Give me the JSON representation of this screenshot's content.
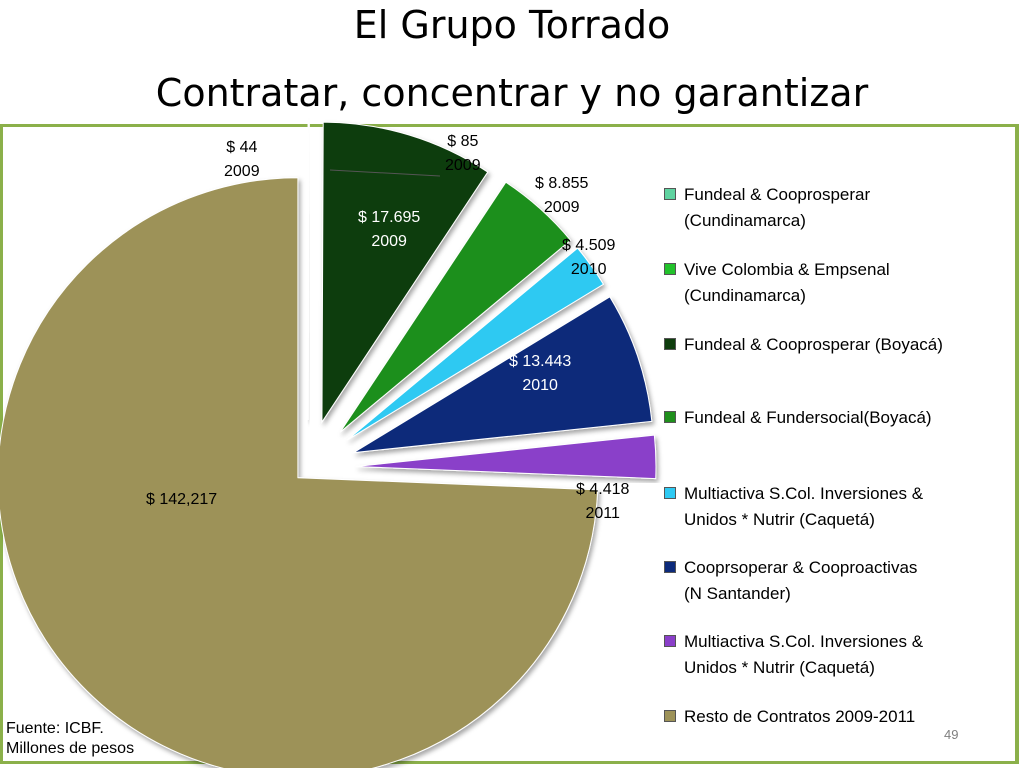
{
  "title_line1": "El Grupo Torrado",
  "title_line2": "Contratar, concentrar y no garantizar",
  "chart_data": {
    "type": "pie",
    "exploded": true,
    "slices": [
      {
        "name": "Fundeal & Cooprosperar (Cundinamarca)",
        "value": 44,
        "value_label": "$ 44",
        "year": "2009",
        "color": "#5fd3a0"
      },
      {
        "name": "Vive Colombia & Empsenal (Cundinamarca)",
        "value": 85,
        "value_label": "$ 85",
        "year": "2009",
        "color": "#22c22b"
      },
      {
        "name": "Fundeal & Cooprosperar (Boyacá)",
        "value": 17695,
        "value_label": "$ 17.695",
        "year": "2009",
        "color": "#0f3d0d"
      },
      {
        "name": "Fundeal & Fundersocial(Boyacá)",
        "value": 8855,
        "value_label": "$ 8.855",
        "year": "2009",
        "color": "#1f8f1c"
      },
      {
        "name": "Multiactiva S.Col. Inversiones & Unidos * Nutrir (Caquetá)",
        "value": 4509,
        "value_label": "$ 4.509",
        "year": "2010",
        "color": "#2ec9f2"
      },
      {
        "name": "Cooprsoperar & Cooproactivas (N Santander)",
        "value": 13443,
        "value_label": "$ 13.443",
        "year": "2010",
        "color": "#0c2a7a"
      },
      {
        "name": "Multiactiva S.Col. Inversiones & Unidos * Nutrir (Caquetá)",
        "value": 4418,
        "value_label": "$ 4.418",
        "year": "2011",
        "color": "#8a3fc9"
      },
      {
        "name": "Resto de Contratos 2009-2011",
        "value": 142217,
        "value_label": "$ 142,217",
        "year": "",
        "color": "#9d9258"
      }
    ]
  },
  "legend": [
    {
      "text": "Fundeal & Cooprosperar\n(Cundinamarca)",
      "color": "#5fd3a0"
    },
    {
      "text": "Vive Colombia & Empsenal\n(Cundinamarca)",
      "color": "#22c22b"
    },
    {
      "text": "Fundeal & Cooprosperar (Boyacá)",
      "color": "#0f3d0d"
    },
    {
      "text": "Fundeal & Fundersocial(Boyacá)",
      "color": "#1f8f1c"
    },
    {
      "text": "Multiactiva S.Col. Inversiones &\nUnidos * Nutrir (Caquetá)",
      "color": "#2ec9f2"
    },
    {
      "text": " Cooprsoperar & Cooproactivas\n(N Santander)",
      "color": "#0c2a7a"
    },
    {
      "text": "Multiactiva S.Col. Inversiones &\nUnidos * Nutrir (Caquetá)",
      "color": "#8a3fc9"
    },
    {
      "text": "Resto de Contratos 2009-2011",
      "color": "#9d9258"
    }
  ],
  "footer": {
    "source": "Fuente: ICBF.",
    "units": "Millones de pesos"
  },
  "page_number": "49"
}
